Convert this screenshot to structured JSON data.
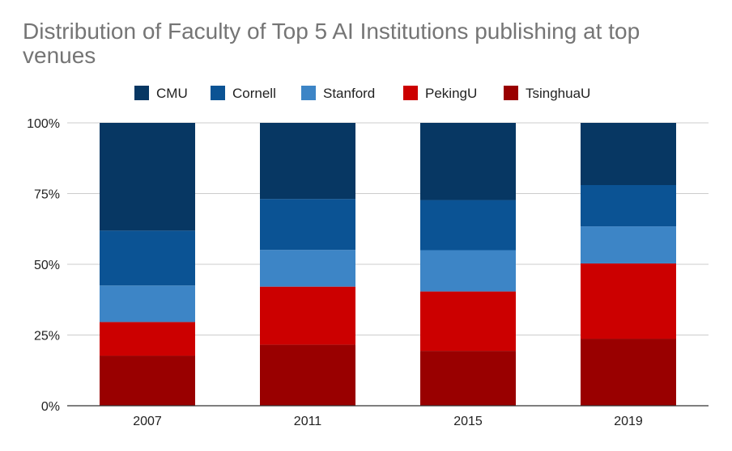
{
  "chart_data": {
    "type": "bar",
    "stacked": "percent",
    "title": "Distribution of Faculty of Top 5 AI Institutions publishing at top venues",
    "xlabel": "",
    "ylabel": "",
    "categories": [
      "2007",
      "2011",
      "2015",
      "2019"
    ],
    "ylim": [
      0,
      100
    ],
    "yticks": [
      "0%",
      "25%",
      "50%",
      "75%",
      "100%"
    ],
    "legend_position": "top",
    "grid": true,
    "series": [
      {
        "name": "TsinghuaU",
        "color": "#990000",
        "values": [
          17.7,
          21.6,
          19.4,
          23.7
        ]
      },
      {
        "name": "PekingU",
        "color": "#cc0000",
        "values": [
          11.9,
          20.5,
          21.0,
          26.6
        ]
      },
      {
        "name": "Stanford",
        "color": "#3d85c6",
        "values": [
          12.9,
          13.0,
          14.6,
          13.1
        ]
      },
      {
        "name": "Cornell",
        "color": "#0b5394",
        "values": [
          19.4,
          18.0,
          17.7,
          14.6
        ]
      },
      {
        "name": "CMU",
        "color": "#073763",
        "values": [
          38.1,
          26.9,
          27.3,
          22.0
        ]
      }
    ],
    "legend_order": [
      "CMU",
      "Cornell",
      "Stanford",
      "PekingU",
      "TsinghuaU"
    ]
  }
}
